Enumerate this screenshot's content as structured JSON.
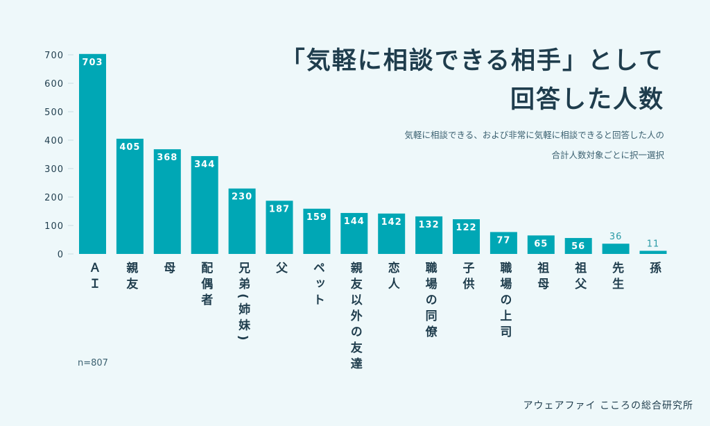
{
  "chart_data": {
    "type": "bar",
    "title": [
      "「気軽に相談できる相手」として",
      "回答した人数"
    ],
    "subtitle": [
      "気軽に相談できる、および非常に気軽に相談できると回答した人の",
      "合計人数対象ごとに択一選択"
    ],
    "categories": [
      "ＡＩ",
      "親友",
      "母",
      "配偶者",
      "兄弟(姉妹)",
      "父",
      "ペット",
      "親友以外の友達",
      "恋人",
      "職場の同僚",
      "子供",
      "職場の上司",
      "祖母",
      "祖父",
      "先生",
      "孫"
    ],
    "values": [
      703,
      405,
      368,
      344,
      230,
      187,
      159,
      144,
      142,
      132,
      122,
      77,
      65,
      56,
      36,
      11
    ],
    "yticks": [
      0,
      100,
      200,
      300,
      400,
      500,
      600,
      700
    ],
    "ylim": [
      0,
      700
    ],
    "xlabel": "",
    "ylabel": "",
    "grid": false,
    "legend": "none",
    "colors": {
      "bar": "#00a7b5",
      "text": "#1f3d4d",
      "label_inside": "#ffffff",
      "label_outside": "#2a9aa6",
      "background": "#eef8fa"
    }
  },
  "note": "n=807",
  "source": "アウェアファイ こころの総合研究所"
}
